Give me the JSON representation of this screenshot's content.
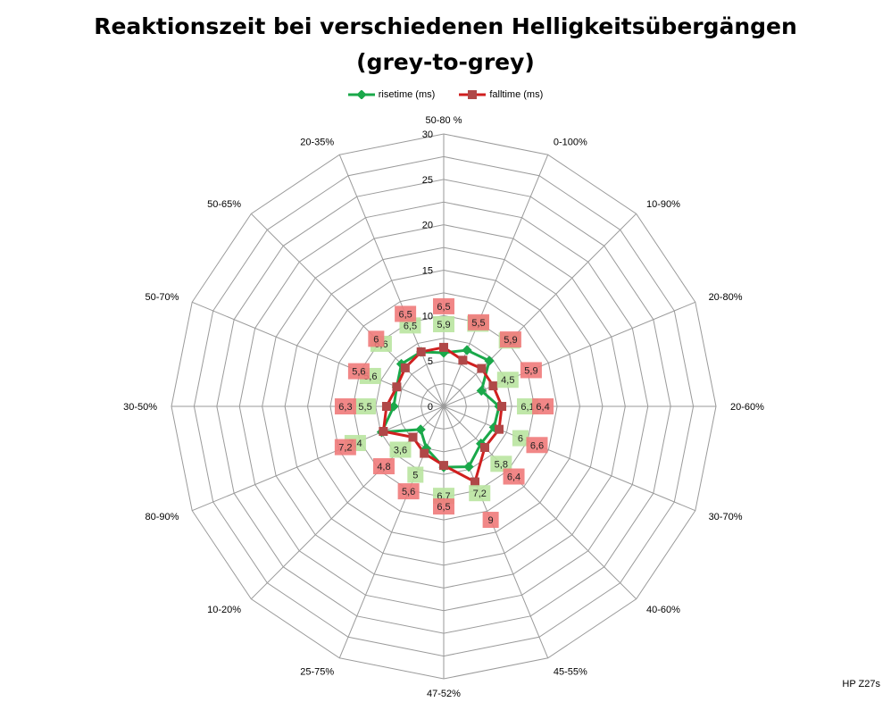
{
  "chart_data": {
    "type": "radar",
    "title_lines": [
      "Reaktionszeit bei verschiedenen Helligkeitsübergängen",
      "(grey-to-grey)"
    ],
    "categories": [
      "50-80 %",
      "0-100%",
      "10-90%",
      "20-80%",
      "20-60%",
      "30-70%",
      "40-60%",
      "45-55%",
      "47-52%",
      "25-75%",
      "10-20%",
      "80-90%",
      "30-50%",
      "50-70%",
      "50-65%",
      "20-35%"
    ],
    "axis_range": [
      0,
      30
    ],
    "ticks": [
      "0",
      "5",
      "10",
      "15",
      "20",
      "25",
      "30"
    ],
    "grid": true,
    "legend_position": "top",
    "series": [
      {
        "name": "risetime (ms)",
        "color": "#1aa84a",
        "label_bg": "#b9e4a0",
        "values": [
          5.9,
          6.7,
          7.1,
          4.5,
          6.1,
          6,
          5.8,
          7.2,
          6.7,
          5,
          3.6,
          7.4,
          5.5,
          5.6,
          6.6,
          6.5
        ]
      },
      {
        "name": "falltime (ms)",
        "color": "#d01f1f",
        "label_bg": "#f07a7a",
        "values": [
          6.5,
          5.5,
          5.9,
          5.9,
          6.4,
          6.6,
          6.4,
          9,
          6.5,
          5.6,
          4.8,
          7.2,
          6.3,
          5.6,
          6,
          6.5
        ]
      }
    ]
  },
  "watermark": "HP Z27s"
}
